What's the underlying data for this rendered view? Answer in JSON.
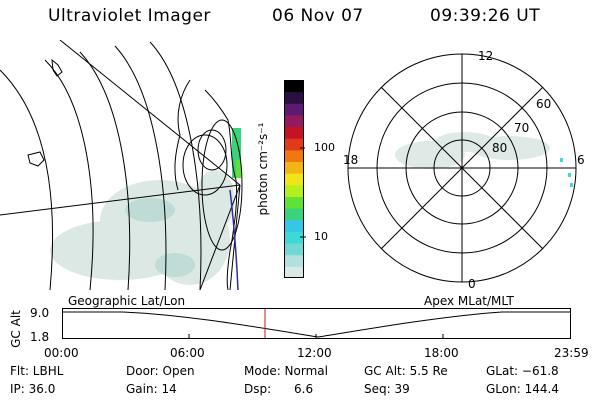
{
  "header": {
    "instrument": "Ultraviolet Imager",
    "date": "06 Nov 07",
    "time": "09:39:26 UT"
  },
  "colorbar": {
    "label": "photon cm⁻²s⁻¹",
    "tick_100": "100",
    "tick_10": "10",
    "colors": [
      "#d9e9e6",
      "#b2e0dc",
      "#74d8d2",
      "#3dd8d8",
      "#35c7e6",
      "#3ad27a",
      "#5fe238",
      "#b5ef1d",
      "#f0e51a",
      "#f5b415",
      "#f07810",
      "#e03a1a",
      "#c21424",
      "#931a5c",
      "#5d1a73",
      "#2a1040",
      "#000000"
    ]
  },
  "polar": {
    "labels": {
      "top": "12",
      "left": "18",
      "right": "6",
      "bottom": "0"
    },
    "lat_labels": [
      "60",
      "70",
      "80"
    ]
  },
  "altitude_plot": {
    "left_label": "Geographic Lat/Lon",
    "right_label": "Apex MLat/MLT",
    "axis_title": "GC Alt",
    "y_top": "9.0",
    "y_bottom": "1.8",
    "x_ticks": [
      "00:00",
      "06:00",
      "12:00",
      "18:00",
      "23:59"
    ]
  },
  "info": {
    "flt": "Flt: LBHL",
    "ip": "IP: 36.0",
    "door": "Door: Open",
    "gain": "Gain: 14",
    "mode": "Mode: Normal",
    "dsp": "Dsp:      6.6",
    "gcalt": "GC Alt: 5.5 Re",
    "seq": "Seq: 39",
    "glat": "GLat: −61.8",
    "glon": "GLon: 144.4"
  }
}
